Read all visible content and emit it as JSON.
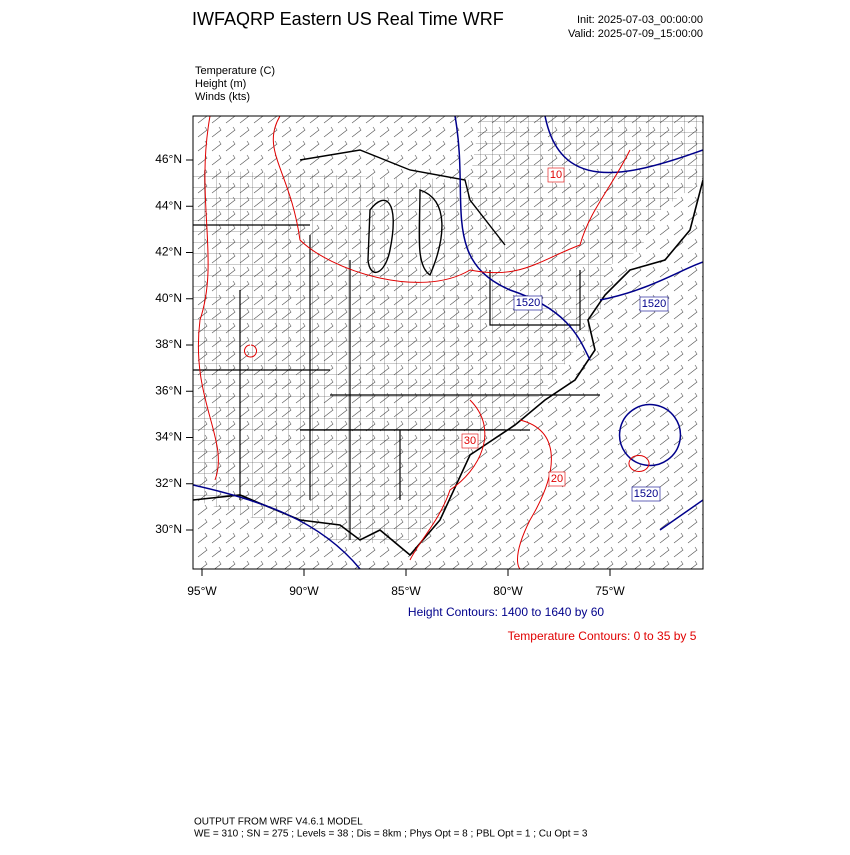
{
  "header": {
    "title": "IWFAQRP Eastern US Real Time WRF",
    "init": "Init: 2025-07-03_00:00:00",
    "valid": "Valid: 2025-07-09_15:00:00"
  },
  "fields": [
    "Temperature   (C)",
    "Height   (m)",
    "Winds   (kts)"
  ],
  "map": {
    "lat_ticks": [
      "46°N",
      "44°N",
      "42°N",
      "40°N",
      "38°N",
      "36°N",
      "34°N",
      "32°N",
      "30°N"
    ],
    "lon_ticks": [
      "95°W",
      "90°W",
      "85°W",
      "80°W",
      "75°W"
    ],
    "height_labels": [
      "1520",
      "1520",
      "1520"
    ],
    "temperature_labels": [
      "10",
      "20",
      "30"
    ]
  },
  "legend": {
    "height": "Height Contours: 1400 to 1640 by 60",
    "temperature": "Temperature Contours: 0 to 35 by 5"
  },
  "footer": {
    "line1": "OUTPUT FROM WRF V4.6.1 MODEL",
    "line2": "WE = 310 ; SN = 275 ; Levels = 38 ; Dis = 8km ; Phys Opt = 8 ; PBL Opt = 1 ; Cu Opt = 3"
  }
}
